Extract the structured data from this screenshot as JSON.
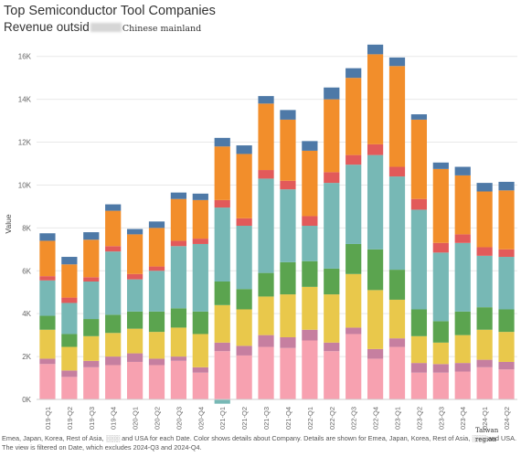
{
  "header": {
    "title": "Top Semiconductor Tool Companies",
    "subtitle_prefix": "Revenue outsid",
    "subtitle_stamp": "Chinese mainland"
  },
  "footnote": {
    "text": "Emea, Japan, Korea, Rest of Asia, ░░░ and USA for each Date.  Color shows details about Company.  Details are shown for Emea, Japan, Korea, Rest of Asia, ░░░ and USA. The view is filtered on Date, which excludes 2024-Q3 and 2024-Q4.",
    "stamp": "Taiwan region"
  },
  "colors": {
    "pink": "#f7a1b0",
    "rose": "#c67fa0",
    "yellow": "#e9c84b",
    "green": "#5ba44f",
    "teal": "#77b8b5",
    "red": "#e25a5a",
    "orange": "#f28e2b",
    "blue": "#4e79a7",
    "grid": "#e8e8e8"
  },
  "chart_data": {
    "type": "bar",
    "stacked": true,
    "title": "Top Semiconductor Tool Companies",
    "ylabel": "Value",
    "ylim": [
      0,
      16500
    ],
    "yticks": [
      0,
      2000,
      4000,
      6000,
      8000,
      10000,
      12000,
      14000,
      16000
    ],
    "ytick_labels": [
      "0K",
      "2K",
      "4K",
      "6K",
      "8K",
      "10K",
      "12K",
      "14K",
      "16K"
    ],
    "grid": true,
    "categories": [
      "2019-Q1",
      "2019-Q2",
      "2019-Q3",
      "2019-Q4",
      "2020-Q1",
      "2020-Q2",
      "2020-Q3",
      "2020-Q4",
      "2021-Q1",
      "2021-Q2",
      "2021-Q3",
      "2021-Q4",
      "2022-Q1",
      "2022-Q2",
      "2022-Q3",
      "2022-Q4",
      "2023-Q1",
      "2023-Q2",
      "2023-Q3",
      "2023-Q4",
      "2024-Q1",
      "2024-Q2"
    ],
    "series": [
      {
        "color": "pink",
        "values": [
          1650,
          1050,
          1500,
          1600,
          1750,
          1600,
          1800,
          1250,
          2250,
          2050,
          2450,
          2400,
          2750,
          2250,
          3050,
          1900,
          2450,
          1250,
          1250,
          1300,
          1500,
          1400
        ]
      },
      {
        "color": "rose",
        "values": [
          250,
          300,
          300,
          400,
          400,
          300,
          200,
          250,
          400,
          450,
          550,
          500,
          500,
          400,
          300,
          450,
          400,
          450,
          400,
          400,
          350,
          350
        ]
      },
      {
        "color": "yellow",
        "values": [
          1350,
          1100,
          1150,
          1100,
          1150,
          1250,
          1350,
          1550,
          1750,
          1700,
          1800,
          2000,
          2000,
          2250,
          2500,
          2750,
          1800,
          1250,
          1000,
          1300,
          1400,
          1400
        ]
      },
      {
        "color": "green",
        "values": [
          650,
          600,
          800,
          850,
          800,
          950,
          900,
          1050,
          1100,
          950,
          1100,
          1500,
          1200,
          1200,
          1400,
          1900,
          1400,
          1250,
          1000,
          1100,
          1050,
          1050
        ]
      },
      {
        "color": "teal",
        "values": [
          1650,
          1450,
          1750,
          2950,
          1500,
          1900,
          2900,
          3150,
          3450,
          2950,
          4400,
          3400,
          1650,
          4000,
          3700,
          4400,
          4350,
          4650,
          3200,
          3200,
          2400,
          2450
        ]
      },
      {
        "color": "red",
        "values": [
          200,
          250,
          200,
          250,
          250,
          200,
          250,
          250,
          350,
          350,
          400,
          400,
          450,
          500,
          450,
          500,
          450,
          500,
          450,
          400,
          400,
          350
        ]
      },
      {
        "color": "orange",
        "values": [
          1650,
          1550,
          1750,
          1650,
          1850,
          1800,
          1950,
          1800,
          2500,
          3000,
          3100,
          2850,
          3050,
          3400,
          3600,
          4200,
          4700,
          3700,
          3450,
          2750,
          2600,
          2750
        ]
      },
      {
        "color": "blue",
        "values": [
          350,
          350,
          350,
          300,
          250,
          300,
          300,
          300,
          400,
          400,
          350,
          450,
          450,
          550,
          450,
          450,
          400,
          250,
          300,
          400,
          400,
          400
        ]
      }
    ],
    "negative_annotations": [
      {
        "category": "2021-Q1",
        "color": "teal",
        "value": -200
      }
    ]
  }
}
